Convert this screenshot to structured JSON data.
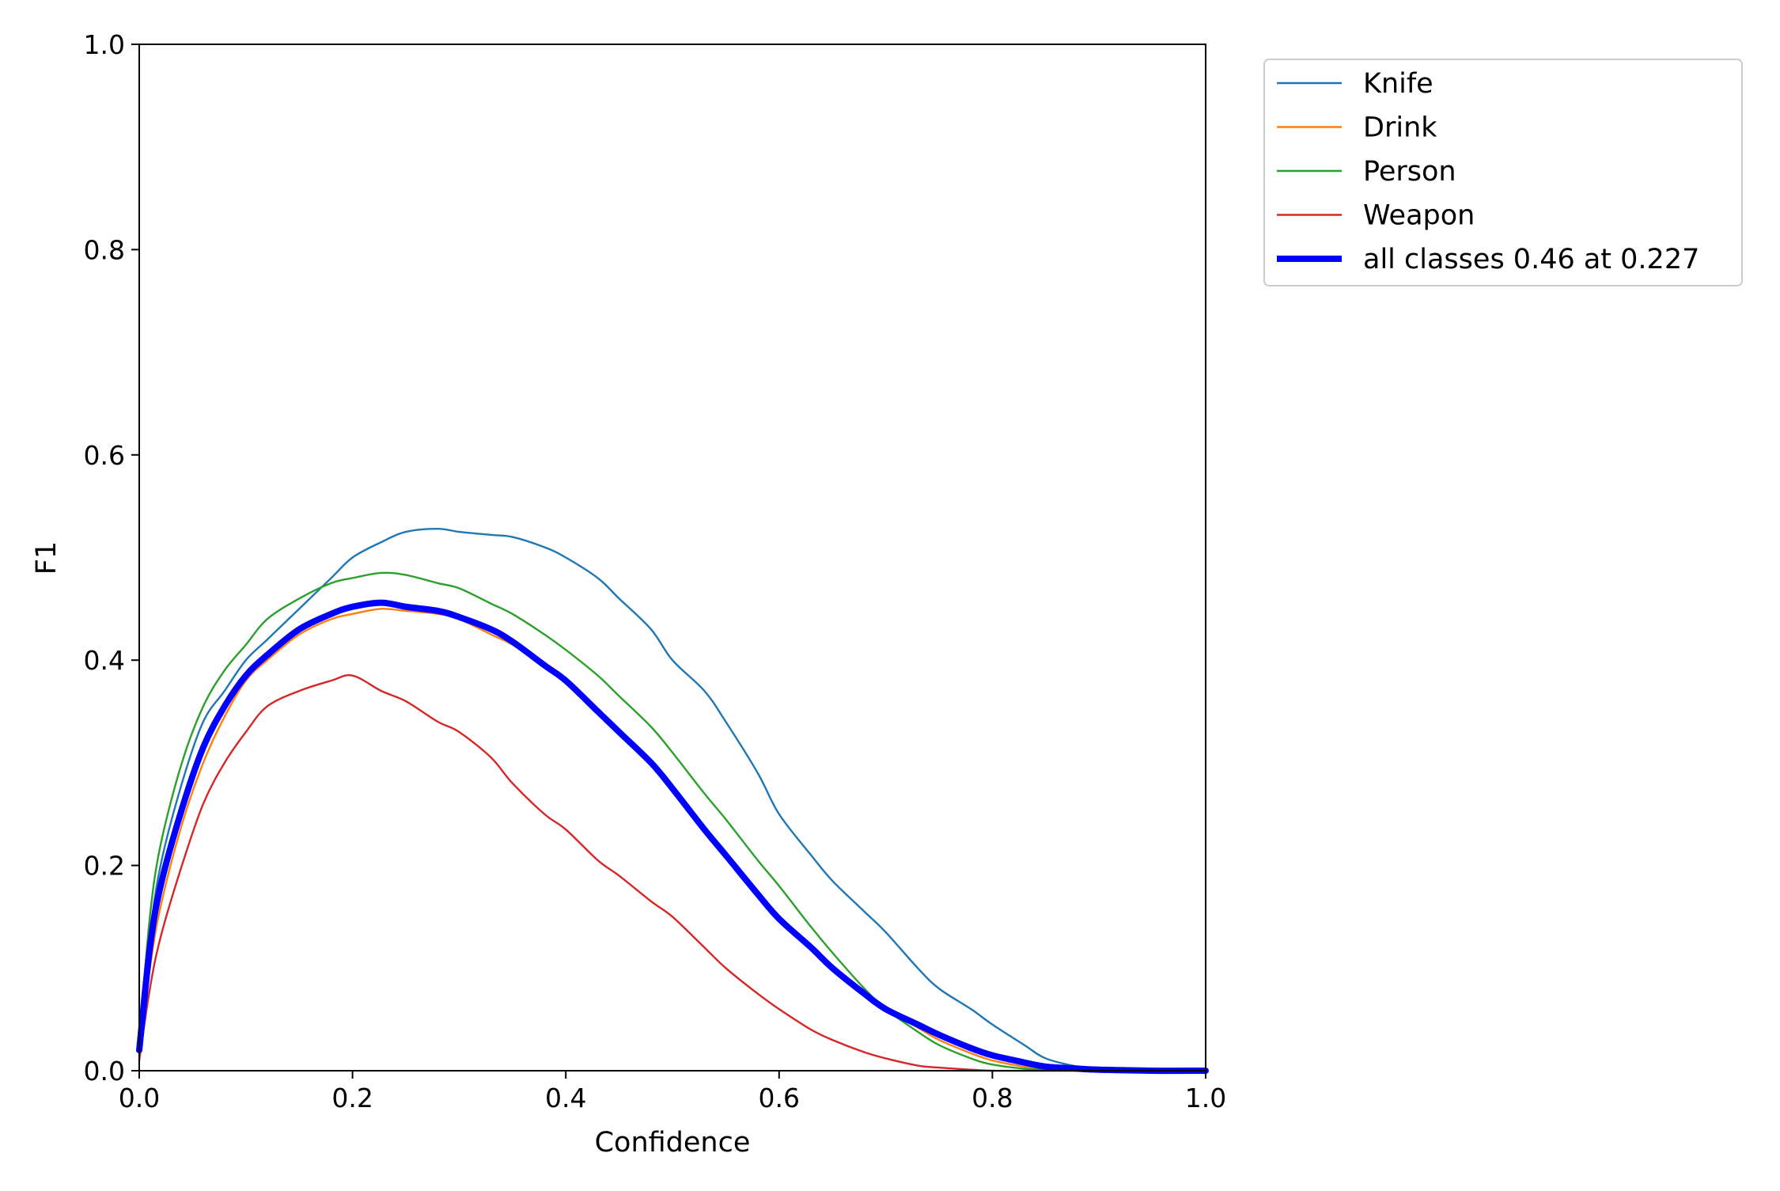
{
  "chart_data": {
    "type": "line",
    "title": "",
    "xlabel": "Confidence",
    "ylabel": "F1",
    "xlim": [
      0.0,
      1.0
    ],
    "ylim": [
      0.0,
      1.0
    ],
    "xticks": [
      "0.0",
      "0.2",
      "0.4",
      "0.6",
      "0.8",
      "1.0"
    ],
    "yticks": [
      "0.0",
      "0.2",
      "0.4",
      "0.6",
      "0.8",
      "1.0"
    ],
    "grid": false,
    "legend_position": "outside upper right",
    "x": [
      0.0,
      0.01,
      0.02,
      0.04,
      0.06,
      0.08,
      0.1,
      0.12,
      0.15,
      0.18,
      0.2,
      0.227,
      0.25,
      0.28,
      0.3,
      0.33,
      0.35,
      0.38,
      0.4,
      0.43,
      0.45,
      0.48,
      0.5,
      0.53,
      0.55,
      0.58,
      0.6,
      0.63,
      0.65,
      0.68,
      0.7,
      0.73,
      0.75,
      0.78,
      0.8,
      0.83,
      0.85,
      0.88,
      0.9,
      0.95,
      1.0
    ],
    "series": [
      {
        "name": "Knife",
        "color": "#1f77b4",
        "width": "thin",
        "values": [
          0.02,
          0.13,
          0.2,
          0.28,
          0.34,
          0.37,
          0.4,
          0.42,
          0.45,
          0.48,
          0.5,
          0.515,
          0.525,
          0.528,
          0.525,
          0.522,
          0.52,
          0.51,
          0.5,
          0.48,
          0.46,
          0.43,
          0.4,
          0.37,
          0.34,
          0.29,
          0.25,
          0.21,
          0.185,
          0.155,
          0.135,
          0.1,
          0.08,
          0.06,
          0.045,
          0.025,
          0.012,
          0.004,
          0.002,
          0.0,
          0.0
        ]
      },
      {
        "name": "Drink",
        "color": "#ff7f0e",
        "width": "thin",
        "values": [
          0.02,
          0.1,
          0.16,
          0.24,
          0.3,
          0.345,
          0.38,
          0.4,
          0.425,
          0.44,
          0.445,
          0.45,
          0.448,
          0.445,
          0.44,
          0.425,
          0.415,
          0.395,
          0.38,
          0.35,
          0.33,
          0.3,
          0.275,
          0.235,
          0.21,
          0.175,
          0.15,
          0.12,
          0.1,
          0.075,
          0.06,
          0.042,
          0.03,
          0.017,
          0.01,
          0.004,
          0.002,
          0.001,
          0.0,
          0.0,
          0.0
        ]
      },
      {
        "name": "Person",
        "color": "#2ca02c",
        "width": "thin",
        "values": [
          0.03,
          0.15,
          0.22,
          0.3,
          0.355,
          0.39,
          0.415,
          0.44,
          0.46,
          0.475,
          0.48,
          0.485,
          0.483,
          0.475,
          0.47,
          0.455,
          0.445,
          0.425,
          0.41,
          0.385,
          0.365,
          0.335,
          0.31,
          0.27,
          0.245,
          0.205,
          0.18,
          0.14,
          0.115,
          0.08,
          0.06,
          0.038,
          0.025,
          0.012,
          0.006,
          0.002,
          0.001,
          0.0,
          0.0,
          0.0,
          0.0
        ]
      },
      {
        "name": "Weapon",
        "color": "#d62728",
        "width": "thin",
        "values": [
          0.01,
          0.08,
          0.13,
          0.2,
          0.26,
          0.3,
          0.33,
          0.355,
          0.37,
          0.38,
          0.385,
          0.37,
          0.36,
          0.34,
          0.33,
          0.305,
          0.28,
          0.25,
          0.235,
          0.205,
          0.19,
          0.165,
          0.15,
          0.12,
          0.1,
          0.075,
          0.06,
          0.04,
          0.03,
          0.018,
          0.012,
          0.005,
          0.003,
          0.001,
          0.0,
          0.0,
          0.0,
          0.0,
          0.0,
          0.0,
          0.0
        ]
      },
      {
        "name": "all classes 0.46 at 0.227",
        "color": "#0000ff",
        "width": "thick",
        "values": [
          0.02,
          0.12,
          0.18,
          0.255,
          0.315,
          0.355,
          0.385,
          0.405,
          0.43,
          0.445,
          0.452,
          0.456,
          0.452,
          0.448,
          0.442,
          0.43,
          0.418,
          0.395,
          0.38,
          0.35,
          0.33,
          0.3,
          0.275,
          0.235,
          0.21,
          0.172,
          0.148,
          0.12,
          0.1,
          0.075,
          0.06,
          0.045,
          0.035,
          0.022,
          0.015,
          0.008,
          0.004,
          0.002,
          0.001,
          0.0,
          0.0
        ]
      }
    ]
  }
}
